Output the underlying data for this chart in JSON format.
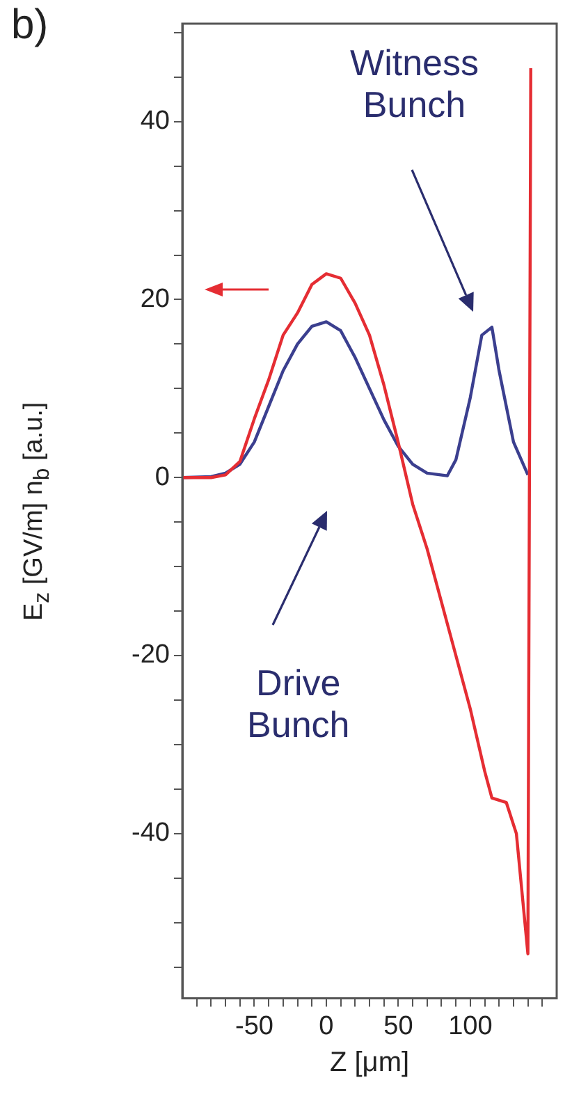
{
  "chart_data": {
    "type": "line",
    "xlabel": "Z [μm]",
    "ylabel": "E$_{z}$ [GV/m]   n$_{b}$ [a.u.]",
    "xlim": [
      -100,
      160
    ],
    "ylim": [
      -58.5,
      51
    ],
    "xticks": [
      {
        "value": -90,
        "label": null
      },
      {
        "value": -80,
        "label": null
      },
      {
        "value": -70,
        "label": null
      },
      {
        "value": -60,
        "label": null
      },
      -50,
      {
        "value": -40,
        "label": null
      },
      {
        "value": -30,
        "label": null
      },
      {
        "value": -20,
        "label": null
      },
      {
        "value": -10,
        "label": null
      },
      0,
      {
        "value": 10,
        "label": null
      },
      {
        "value": 20,
        "label": null
      },
      {
        "value": 30,
        "label": null
      },
      {
        "value": 40,
        "label": null
      },
      50,
      {
        "value": 60,
        "label": null
      },
      {
        "value": 70,
        "label": null
      },
      {
        "value": 80,
        "label": null
      },
      {
        "value": 90,
        "label": null
      },
      100,
      {
        "value": 110,
        "label": null
      },
      {
        "value": 120,
        "label": null
      },
      {
        "value": 130,
        "label": null
      },
      {
        "value": 140,
        "label": null
      },
      {
        "value": 150,
        "label": null
      }
    ],
    "yticks": [
      {
        "value": -55,
        "label": null
      },
      {
        "value": -50,
        "label": null
      },
      {
        "value": -45,
        "label": null
      },
      -40,
      {
        "value": -35,
        "label": null
      },
      {
        "value": -30,
        "label": null
      },
      {
        "value": -25,
        "label": null
      },
      -20,
      {
        "value": -15,
        "label": null
      },
      {
        "value": -10,
        "label": null
      },
      {
        "value": -5,
        "label": null
      },
      0,
      {
        "value": 5,
        "label": null
      },
      {
        "value": 10,
        "label": null
      },
      {
        "value": 15,
        "label": null
      },
      20,
      {
        "value": 25,
        "label": null
      },
      {
        "value": 30,
        "label": null
      },
      {
        "value": 35,
        "label": null
      },
      40,
      {
        "value": 45,
        "label": null
      },
      {
        "value": 50,
        "label": null
      }
    ],
    "marker": "none",
    "line_style": "solid",
    "series": [
      {
        "color": "#e52d33",
        "x": [
          -100,
          -80,
          -70,
          -60,
          -50,
          -40,
          -30,
          -20,
          -10,
          0,
          10,
          20,
          30,
          40,
          50,
          60,
          70,
          80,
          90,
          100,
          110,
          115,
          125,
          132,
          140,
          142
        ],
        "values": [
          0,
          0,
          0.3,
          1.8,
          6.6,
          11,
          16,
          18.5,
          21.7,
          22.9,
          22.4,
          19.6,
          16,
          10.4,
          3.9,
          -3,
          -8,
          -14,
          -20,
          -26,
          -33,
          -36,
          -36.5,
          -40,
          -53.5,
          46
        ]
      },
      {
        "color": "#3b3f8f",
        "x": [
          -100,
          -80,
          -70,
          -60,
          -50,
          -40,
          -30,
          -20,
          -10,
          0,
          10,
          20,
          30,
          40,
          50,
          60,
          70,
          84,
          90,
          100,
          108,
          115,
          120,
          130,
          140
        ],
        "values": [
          0,
          0.1,
          0.5,
          1.5,
          4,
          8,
          12,
          15,
          17,
          17.5,
          16.5,
          13.5,
          10,
          6.5,
          3.5,
          1.5,
          0.5,
          0.2,
          2,
          9,
          16,
          16.9,
          12,
          4,
          0.3
        ]
      }
    ],
    "annotations": [
      "b)",
      "Witness Bunch",
      "Drive Bunch"
    ]
  }
}
